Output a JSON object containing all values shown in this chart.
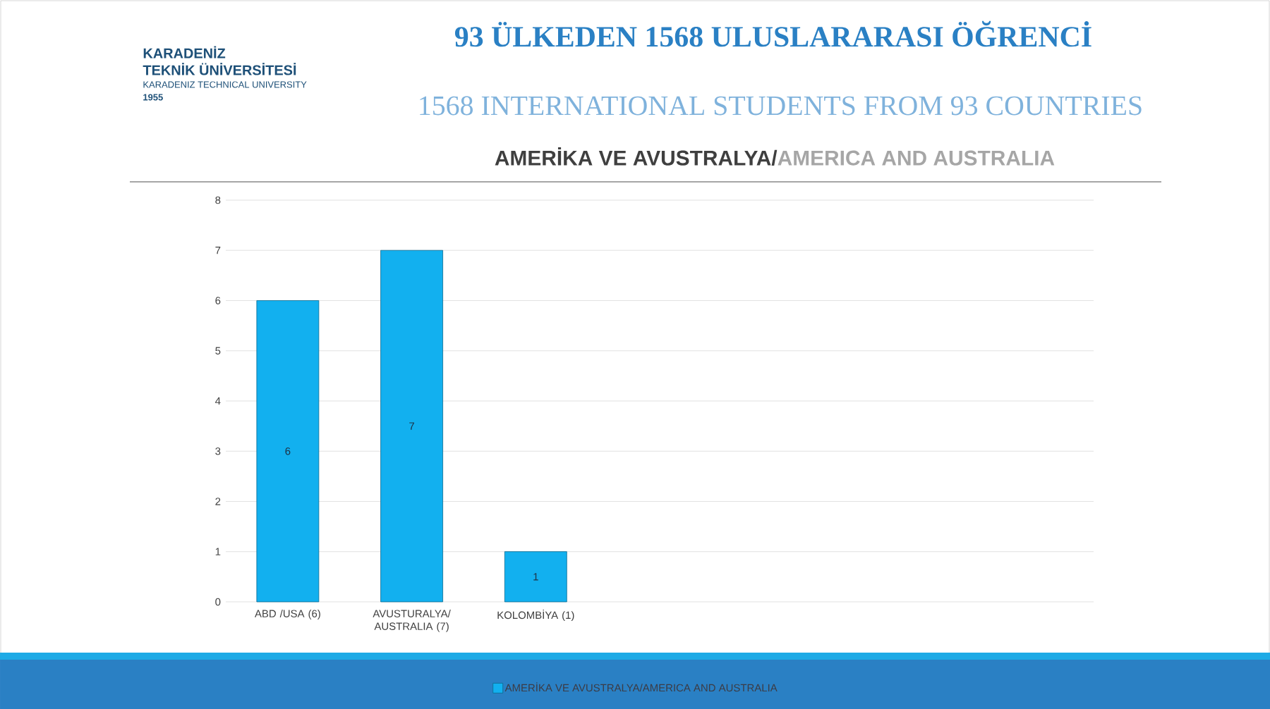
{
  "chart_data": {
    "type": "bar",
    "title": "93 ÜLKEDEN 1568 ULUSLARARASI ÖĞRENCİ",
    "subtitle": "1568 INTERNATIONAL STUDENTS FROM 93 COUNTRIES",
    "annotations": [
      "KARADENİZ",
      "TEKNİK ÜNİVERSİTESİ",
      "KARADENIZ TECHNICAL UNIVERSITY",
      "1955",
      "AMERİKA VE AVUSTRALYA/",
      "AMERICA AND AUSTRALIA"
    ],
    "categories": [
      "ABD /USA (6)",
      "AVUSTURALYA/ AUSTRALIA (7)",
      "KOLOMBİYA (1)",
      null,
      null,
      null,
      null
    ],
    "series": [
      {
        "name": "AMERİKA VE AVUSTRALYA/AMERICA AND AUSTRALIA",
        "color": "#12b0ef",
        "values": [
          6,
          7,
          1,
          null,
          null,
          null,
          null
        ]
      }
    ],
    "ylim": [
      0,
      8
    ],
    "yticks": [
      0,
      1,
      2,
      3,
      4,
      5,
      6,
      7,
      8
    ],
    "grid": "y",
    "legend": "bottom",
    "data_labels": true
  }
}
